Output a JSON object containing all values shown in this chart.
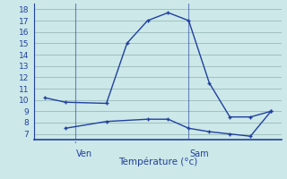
{
  "line1_x": [
    0,
    1,
    3,
    4,
    5,
    6,
    7,
    8,
    9,
    10,
    11
  ],
  "line1_y": [
    10.2,
    9.8,
    9.7,
    15.0,
    17.0,
    17.7,
    17.0,
    11.5,
    8.5,
    8.5,
    9.0
  ],
  "line2_x": [
    1,
    3,
    5,
    6,
    7,
    8,
    9,
    10,
    11
  ],
  "line2_y": [
    7.5,
    8.1,
    8.3,
    8.3,
    7.5,
    7.2,
    7.0,
    6.8,
    9.0
  ],
  "line_color": "#2040a0",
  "bg_color": "#cce8e8",
  "grid_color": "#a0c0c0",
  "axis_color": "#2040a0",
  "xlabel": "Température (°c)",
  "xlabel_color": "#2040a0",
  "ylabel_ticks": [
    7,
    8,
    9,
    10,
    11,
    12,
    13,
    14,
    15,
    16,
    17,
    18
  ],
  "ylim": [
    6.5,
    18.5
  ],
  "xlim": [
    -0.5,
    11.5
  ],
  "ven_x": 1.5,
  "sam_x": 7.0,
  "ven_label": "Ven",
  "sam_label": "Sam",
  "tick_label_color": "#2040a0",
  "markersize": 2.5,
  "linewidth": 1.0
}
